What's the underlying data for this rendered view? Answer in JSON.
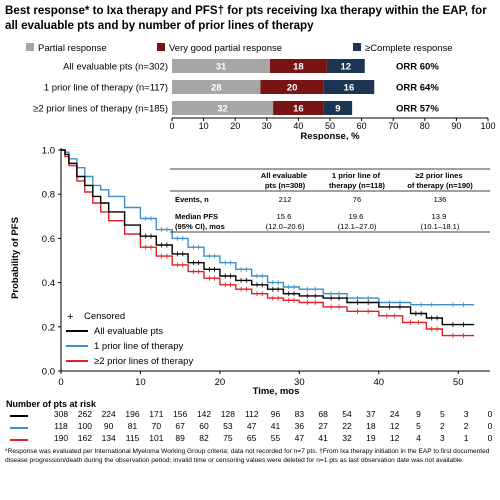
{
  "title": "Best response* to Ixa therapy and PFS† for pts receiving Ixa therapy within the EAP, for all evaluable pts and by number of prior lines of therapy",
  "chart_data": [
    {
      "type": "bar",
      "orientation": "horizontal",
      "stacked": true,
      "categories": [
        "All evaluable pts (n=302)",
        "1 prior line of therapy (n=117)",
        "≥2 prior lines of therapy (n=185)"
      ],
      "series": [
        {
          "name": "Partial response",
          "color": "#a6a6a6",
          "values": [
            31,
            28,
            32
          ]
        },
        {
          "name": "Very good partial response",
          "color": "#7a1414",
          "values": [
            18,
            20,
            16
          ]
        },
        {
          "name": "≥Complete response",
          "color": "#1b3553",
          "values": [
            12,
            16,
            9
          ]
        }
      ],
      "orr_labels": [
        "ORR 60%",
        "ORR 64%",
        "ORR 57%"
      ],
      "xlabel": "Response, %",
      "xlim": [
        0,
        100
      ],
      "xticks": [
        "0",
        "10",
        "20",
        "30",
        "40",
        "50",
        "60",
        "70",
        "80",
        "90",
        "100"
      ],
      "legend_position": "top"
    },
    {
      "type": "line",
      "subtype": "kaplan-meier",
      "xlabel": "Time, mos",
      "ylabel": "Probability of PFS",
      "xlim": [
        0,
        54
      ],
      "ylim": [
        0,
        1.0
      ],
      "xticks": [
        "0",
        "10",
        "20",
        "30",
        "40",
        "50"
      ],
      "yticks": [
        "0.0",
        "0.2",
        "0.4",
        "0.6",
        "0.8",
        "1.0"
      ],
      "legend": {
        "censored_label": "Censored"
      },
      "series": [
        {
          "name": "All evaluable pts",
          "color": "#000000",
          "x": [
            0,
            0.5,
            1,
            2,
            3,
            4,
            5,
            6,
            8,
            10,
            12,
            14,
            16,
            18,
            20,
            22,
            24,
            26,
            28,
            30,
            33,
            36,
            40,
            44,
            46,
            48,
            52
          ],
          "y": [
            1.0,
            0.98,
            0.94,
            0.88,
            0.84,
            0.79,
            0.76,
            0.72,
            0.66,
            0.61,
            0.57,
            0.53,
            0.49,
            0.46,
            0.43,
            0.41,
            0.39,
            0.37,
            0.35,
            0.34,
            0.33,
            0.31,
            0.29,
            0.26,
            0.24,
            0.21,
            0.21
          ]
        },
        {
          "name": "1 prior line of therapy",
          "color": "#3d8fc9",
          "x": [
            0,
            0.5,
            1,
            2,
            3,
            4,
            5,
            6,
            8,
            10,
            12,
            14,
            16,
            18,
            20,
            22,
            24,
            26,
            28,
            30,
            33,
            36,
            40,
            44,
            48,
            52
          ],
          "y": [
            1.0,
            0.99,
            0.96,
            0.92,
            0.88,
            0.84,
            0.82,
            0.79,
            0.74,
            0.69,
            0.64,
            0.6,
            0.56,
            0.52,
            0.49,
            0.46,
            0.43,
            0.4,
            0.38,
            0.37,
            0.35,
            0.33,
            0.31,
            0.3,
            0.3,
            0.3
          ]
        },
        {
          "name": "≥2 prior lines of therapy",
          "color": "#e41e26",
          "x": [
            0,
            0.5,
            1,
            2,
            3,
            4,
            5,
            6,
            8,
            10,
            12,
            14,
            16,
            18,
            20,
            22,
            24,
            26,
            28,
            30,
            33,
            36,
            40,
            43,
            46,
            48,
            52
          ],
          "y": [
            1.0,
            0.97,
            0.93,
            0.86,
            0.81,
            0.76,
            0.72,
            0.68,
            0.62,
            0.56,
            0.52,
            0.48,
            0.45,
            0.42,
            0.39,
            0.37,
            0.35,
            0.33,
            0.32,
            0.31,
            0.29,
            0.27,
            0.25,
            0.22,
            0.19,
            0.16,
            0.16
          ]
        }
      ],
      "table": {
        "headers": [
          "",
          "All evaluable pts (n=308)",
          "1 prior line of therapy (n=118)",
          "≥2 prior lines of therapy (n=190)"
        ],
        "rows": [
          {
            "label": "Events, n",
            "values": [
              "212",
              "76",
              "136"
            ]
          },
          {
            "label": "Median PFS (95% CI), mos",
            "values": [
              "15.6 (12.0–20.6)",
              "19.6 (12.1–27.0)",
              "13.9 (10.1–18.1)"
            ]
          }
        ]
      }
    }
  ],
  "bar_legend": [
    "Partial response",
    "Very good partial response",
    "≥Complete response"
  ],
  "km_table_display": {
    "h1": [
      "All evaluable",
      "pts (n=308)"
    ],
    "h2": [
      "1 prior line of",
      "therapy (n=118)"
    ],
    "h3": [
      "≥2 prior lines",
      "of therapy (n=190)"
    ],
    "r1_label": "Events, n",
    "r1": [
      "212",
      "76",
      "136"
    ],
    "r2_label": [
      "Median PFS",
      "(95% CI), mos"
    ],
    "r2_med": [
      "15.6",
      "19.6",
      "13.9"
    ],
    "r2_ci": [
      "(12.0–20.6)",
      "(12.1–27.0)",
      "(10.1–18.1)"
    ]
  },
  "risk_table": {
    "title": "Number of pts at risk",
    "rows": [
      {
        "color": "#000000",
        "values": [
          "308",
          "262",
          "224",
          "196",
          "171",
          "156",
          "142",
          "128",
          "112",
          "96",
          "83",
          "68",
          "54",
          "37",
          "24",
          "9",
          "5",
          "3",
          "0"
        ]
      },
      {
        "color": "#3d8fc9",
        "values": [
          "118",
          "100",
          "90",
          "81",
          "70",
          "67",
          "60",
          "53",
          "47",
          "41",
          "36",
          "27",
          "22",
          "18",
          "12",
          "5",
          "2",
          "2",
          "0"
        ]
      },
      {
        "color": "#e41e26",
        "values": [
          "190",
          "162",
          "134",
          "115",
          "101",
          "89",
          "82",
          "75",
          "65",
          "55",
          "47",
          "41",
          "32",
          "19",
          "12",
          "4",
          "3",
          "1",
          "0"
        ]
      }
    ]
  },
  "footnote": "*Response was evaluated per International Myeloma Working Group criteria; data not recorded for n=7 pts. †From Ixa therapy initiation in the EAP to first documented disease progression/death during the observation period; invalid time or censoring values were deleted for n=1 pts as last observation date was not available."
}
